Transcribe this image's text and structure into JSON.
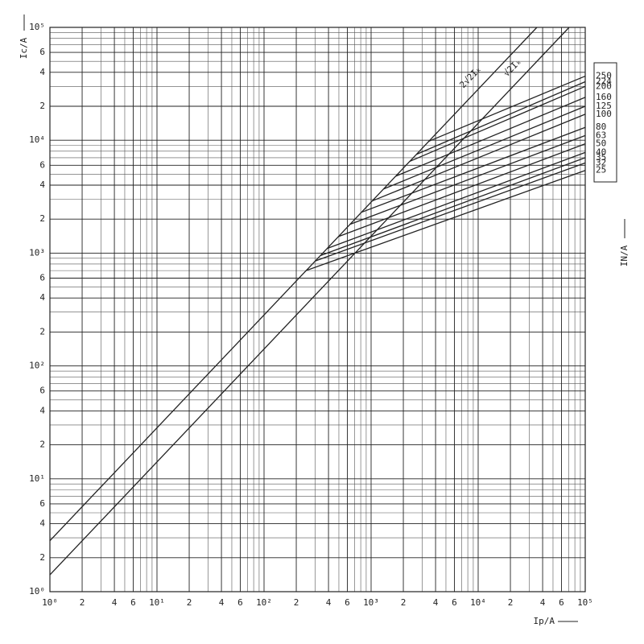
{
  "chart_data": {
    "type": "line",
    "xlog": true,
    "ylog": true,
    "grid": true,
    "xlabel": "Ip/A",
    "ylabel": "Ic/A",
    "y2label": "IN/A",
    "xlim": [
      1,
      100000
    ],
    "ylim": [
      1,
      100000
    ],
    "xticks": [
      {
        "value": 1,
        "label": "10⁰"
      },
      2,
      4,
      6,
      {
        "value": 10,
        "label": "10¹"
      },
      {
        "value": 20,
        "label": "2"
      },
      {
        "value": 40,
        "label": "4"
      },
      {
        "value": 60,
        "label": "6"
      },
      {
        "value": 100,
        "label": "10²"
      },
      {
        "value": 200,
        "label": "2"
      },
      {
        "value": 400,
        "label": "4"
      },
      {
        "value": 600,
        "label": "6"
      },
      {
        "value": 1000,
        "label": "10³"
      },
      {
        "value": 2000,
        "label": "2"
      },
      {
        "value": 4000,
        "label": "4"
      },
      {
        "value": 6000,
        "label": "6"
      },
      {
        "value": 10000,
        "label": "10⁴"
      },
      {
        "value": 20000,
        "label": "2"
      },
      {
        "value": 40000,
        "label": "4"
      },
      {
        "value": 60000,
        "label": "6"
      },
      {
        "value": 100000,
        "label": "10⁵"
      }
    ],
    "yticks": [
      {
        "value": 1,
        "label": "10⁰"
      },
      2,
      4,
      6,
      {
        "value": 10,
        "label": "10¹"
      },
      {
        "value": 20,
        "label": "2"
      },
      {
        "value": 40,
        "label": "4"
      },
      {
        "value": 60,
        "label": "6"
      },
      {
        "value": 100,
        "label": "10²"
      },
      {
        "value": 200,
        "label": "2"
      },
      {
        "value": 400,
        "label": "4"
      },
      {
        "value": 600,
        "label": "6"
      },
      {
        "value": 1000,
        "label": "10³"
      },
      {
        "value": 2000,
        "label": "2"
      },
      {
        "value": 4000,
        "label": "4"
      },
      {
        "value": 6000,
        "label": "6"
      },
      {
        "value": 10000,
        "label": "10⁴"
      },
      {
        "value": 20000,
        "label": "2"
      },
      {
        "value": 40000,
        "label": "4"
      },
      {
        "value": 60000,
        "label": "6"
      },
      {
        "value": 100000,
        "label": "10⁵"
      }
    ],
    "xminor": [
      3,
      5,
      7,
      8,
      9,
      30,
      50,
      70,
      80,
      90,
      300,
      500,
      700,
      800,
      900,
      3000,
      5000,
      7000,
      8000,
      9000,
      30000,
      50000,
      70000,
      80000,
      90000
    ],
    "yminor": [
      3,
      5,
      7,
      8,
      9,
      30,
      50,
      70,
      80,
      90,
      300,
      500,
      700,
      800,
      900,
      3000,
      5000,
      7000,
      8000,
      9000,
      30000,
      50000,
      70000,
      80000,
      90000
    ],
    "series": [
      {
        "name": "2√2Iₖ",
        "color": "#222222",
        "x": [
          1,
          35355
        ],
        "values": [
          2.83,
          100000
        ]
      },
      {
        "name": "√2Iₖ",
        "color": "#222222",
        "x": [
          1,
          70711
        ],
        "values": [
          1.41,
          100000
        ]
      },
      {
        "name": "250",
        "color": "#222222",
        "x": [
          3465,
          100000
        ],
        "values": [
          9800,
          37000
        ]
      },
      {
        "name": "224",
        "color": "#222222",
        "x": [
          2652,
          100000
        ],
        "values": [
          7500,
          33000
        ]
      },
      {
        "name": "200",
        "color": "#222222",
        "x": [
          2298,
          100000
        ],
        "values": [
          6500,
          30000
        ]
      },
      {
        "name": "160",
        "color": "#222222",
        "x": [
          1697,
          100000
        ],
        "values": [
          4800,
          24000
        ]
      },
      {
        "name": "125",
        "color": "#222222",
        "x": [
          1308,
          100000
        ],
        "values": [
          3700,
          20000
        ]
      },
      {
        "name": "100",
        "color": "#222222",
        "x": [
          1025,
          100000
        ],
        "values": [
          2900,
          17000
        ]
      },
      {
        "name": "80",
        "color": "#222222",
        "x": [
          813,
          100000
        ],
        "values": [
          2300,
          13000
        ]
      },
      {
        "name": "63",
        "color": "#222222",
        "x": [
          636,
          100000
        ],
        "values": [
          1800,
          11000
        ]
      },
      {
        "name": "50",
        "color": "#222222",
        "x": [
          495,
          100000
        ],
        "values": [
          1400,
          9300
        ]
      },
      {
        "name": "40",
        "color": "#222222",
        "x": [
          389,
          100000
        ],
        "values": [
          1100,
          7800
        ]
      },
      {
        "name": "35",
        "color": "#222222",
        "x": [
          336,
          100000
        ],
        "values": [
          950,
          7000
        ]
      },
      {
        "name": "32",
        "color": "#222222",
        "x": [
          300,
          100000
        ],
        "values": [
          850,
          6300
        ]
      },
      {
        "name": "25",
        "color": "#222222",
        "x": [
          247,
          100000
        ],
        "values": [
          700,
          5400
        ]
      }
    ]
  }
}
